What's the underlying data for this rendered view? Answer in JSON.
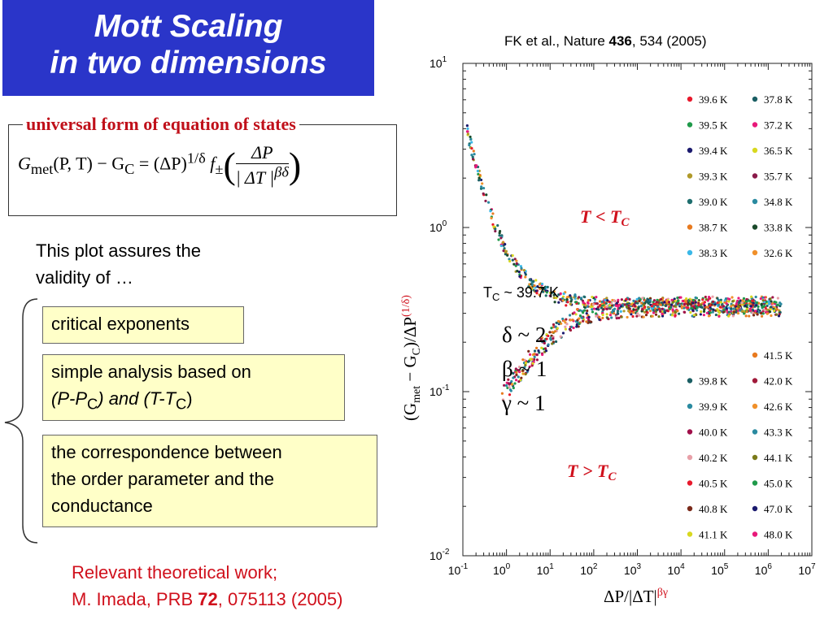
{
  "title": {
    "line1": "Mott Scaling",
    "line2": "in two dimensions"
  },
  "citation": {
    "prefix": "FK et al., Nature ",
    "volume": "436",
    "suffix": ", 534 (2005)"
  },
  "equation_box": {
    "label": "universal form of equation of states",
    "formula": {
      "g": "G",
      "met": "met",
      "args": "(P, T) − G",
      "c": "C",
      "eq": " = (ΔP)",
      "exp": "1/δ",
      "f": "f",
      "pm": "±",
      "num": "ΔP",
      "den_l": "| ΔT |",
      "den_exp": "βδ"
    }
  },
  "intro": {
    "line1": "This plot assures the",
    "line2": "validity of …"
  },
  "boxes": [
    {
      "lines": [
        "critical exponents"
      ]
    },
    {
      "lines": [
        "simple analysis based on",
        "(P-P",
        "C",
        ") and (T-T",
        "C",
        ")"
      ]
    },
    {
      "lines": [
        "the correspondence between",
        "the order parameter and the",
        "conductance"
      ]
    }
  ],
  "relevant": {
    "line1": "Relevant theoretical work;",
    "line2_prefix": "M. Imada, PRB ",
    "volume": "72",
    "line2_suffix": ", 075113 (2005)"
  },
  "chart_data": {
    "type": "scatter",
    "xlabel": "ΔP/|ΔT|",
    "xlabel_sup": "βγ",
    "ylabel": "(G",
    "ylabel_parts": [
      "met",
      " − G",
      "C",
      ")/ΔP",
      "(1/δ)"
    ],
    "x_scale": "log",
    "y_scale": "log",
    "xlim": [
      0.1,
      10000000
    ],
    "ylim": [
      0.01,
      10
    ],
    "x_ticks": [
      {
        "base": "10",
        "exp": "-1"
      },
      {
        "base": "10",
        "exp": "0"
      },
      {
        "base": "10",
        "exp": "1"
      },
      {
        "base": "10",
        "exp": "2"
      },
      {
        "base": "10",
        "exp": "3"
      },
      {
        "base": "10",
        "exp": "4"
      },
      {
        "base": "10",
        "exp": "5"
      },
      {
        "base": "10",
        "exp": "6"
      },
      {
        "base": "10",
        "exp": "7"
      }
    ],
    "y_ticks": [
      {
        "base": "10",
        "exp": "1"
      },
      {
        "base": "10",
        "exp": "0"
      },
      {
        "base": "10",
        "exp": "-1"
      },
      {
        "base": "10",
        "exp": "-2"
      }
    ],
    "annotations": {
      "below": {
        "t": "T",
        "lt": " < ",
        "tc": "T",
        "c": "C"
      },
      "above": {
        "t": "T",
        "gt": " > ",
        "tc": "T",
        "c": "C"
      },
      "tc_label": {
        "t": "T",
        "c": "C",
        "value": " ~ 39.7 K"
      },
      "exponents": [
        "δ ~ 2",
        "β ~ 1",
        "γ ~ 1"
      ]
    },
    "plateau_value": 0.33,
    "legend_upper": [
      {
        "name": "39.6 K",
        "color": "#e8192c"
      },
      {
        "name": "37.8 K",
        "color": "#1a5e63"
      },
      {
        "name": "39.5 K",
        "color": "#1f9a4a"
      },
      {
        "name": "37.2 K",
        "color": "#e8197a"
      },
      {
        "name": "39.4 K",
        "color": "#1b1a6e"
      },
      {
        "name": "36.5 K",
        "color": "#d8d81f"
      },
      {
        "name": "39.3 K",
        "color": "#b09a2a"
      },
      {
        "name": "35.7 K",
        "color": "#8a1a4a"
      },
      {
        "name": "39.0 K",
        "color": "#1e6e6e"
      },
      {
        "name": "34.8 K",
        "color": "#2a8aa0"
      },
      {
        "name": "38.7 K",
        "color": "#e87a1f"
      },
      {
        "name": "33.8 K",
        "color": "#1a4a2a"
      },
      {
        "name": "38.3 K",
        "color": "#3ab8e8"
      },
      {
        "name": "32.6 K",
        "color": "#f0902a"
      }
    ],
    "legend_lower": [
      {
        "name": "",
        "color": ""
      },
      {
        "name": "41.5 K",
        "color": "#e87a1f"
      },
      {
        "name": "39.8 K",
        "color": "#1a5e63"
      },
      {
        "name": "42.0 K",
        "color": "#a01a3a"
      },
      {
        "name": "39.9 K",
        "color": "#2a8aa0"
      },
      {
        "name": "42.6 K",
        "color": "#f0902a"
      },
      {
        "name": "40.0 K",
        "color": "#a0104a"
      },
      {
        "name": "43.3 K",
        "color": "#2a8aa0"
      },
      {
        "name": "40.2 K",
        "color": "#e8a0a8"
      },
      {
        "name": "44.1 K",
        "color": "#7a7a1a"
      },
      {
        "name": "40.5 K",
        "color": "#e8192c"
      },
      {
        "name": "45.0 K",
        "color": "#1f9a4a"
      },
      {
        "name": "40.8 K",
        "color": "#7a2a1a"
      },
      {
        "name": "47.0 K",
        "color": "#1b1a6e"
      },
      {
        "name": "41.1 K",
        "color": "#d8d81f"
      },
      {
        "name": "48.0 K",
        "color": "#e8197a"
      }
    ]
  },
  "colors": {
    "title_bg": "#2a35c9",
    "accent_red": "#d0101c",
    "box_fill": "#ffffc8"
  }
}
